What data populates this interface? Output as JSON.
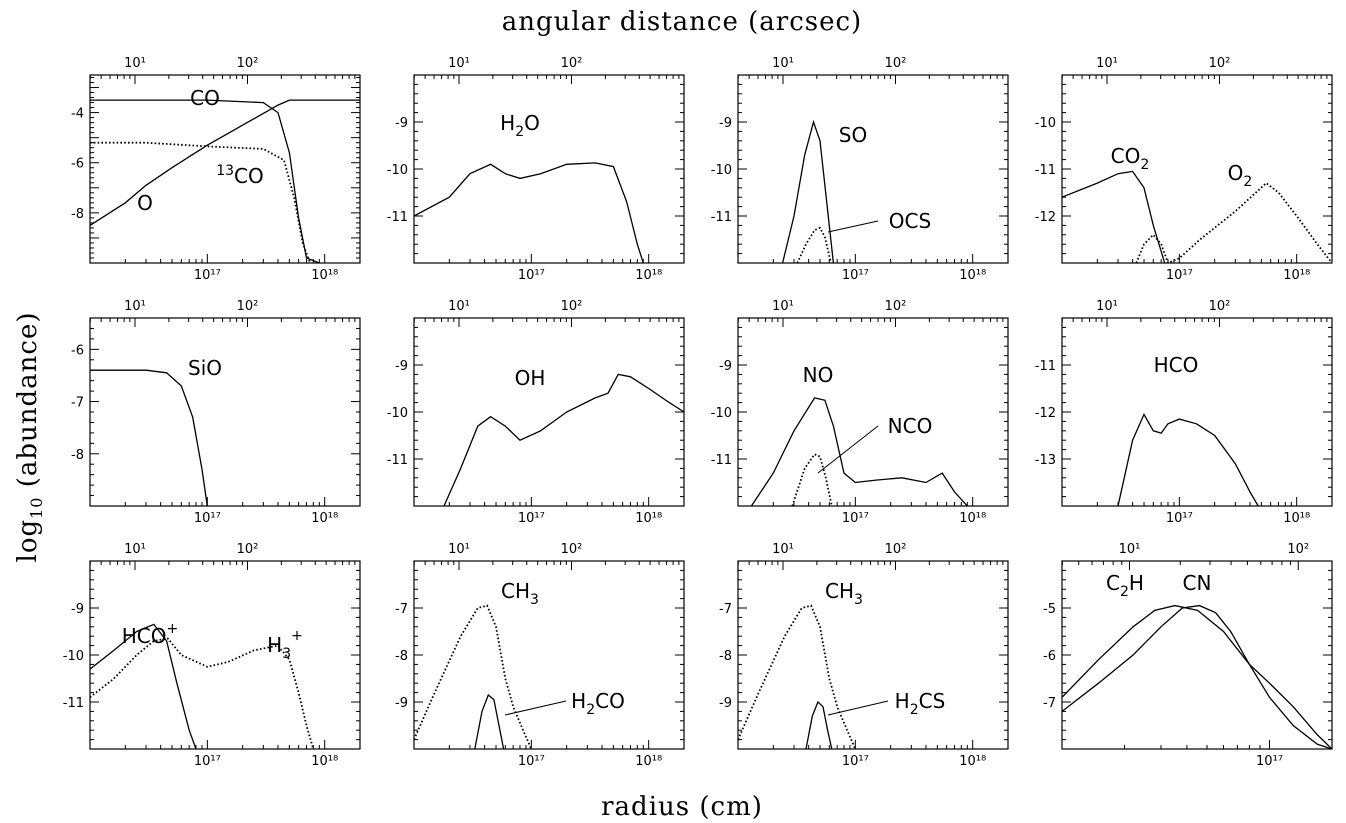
{
  "figure": {
    "top_label": "angular distance (arcsec)",
    "bottom_label": "radius (cm)",
    "left_label_main": "log",
    "left_label_sub": "10",
    "left_label_rest": " (abundance)"
  },
  "chart_data": [
    {
      "type": "line",
      "row": 0,
      "col": 0,
      "xlim": [
        1e+16,
        2e+18
      ],
      "ylim": [
        -10,
        -2.5
      ],
      "yticks": [
        "-4",
        "-6",
        "-8"
      ],
      "ytick_values": [
        -4,
        -6,
        -8
      ],
      "xticks": [
        "10¹⁷",
        "10¹⁸"
      ],
      "top_ticks": [
        "10¹",
        "10²"
      ],
      "series": [
        {
          "name": "CO",
          "style": "solid",
          "x": [
            1e+16,
            1e+17,
            3e+17,
            4e+17,
            5e+17,
            6e+17,
            7e+17,
            9e+17
          ],
          "y": [
            -3.5,
            -3.5,
            -3.6,
            -4.0,
            -5.6,
            -8.2,
            -9.8,
            -10
          ]
        },
        {
          "name": "O",
          "style": "solid",
          "x": [
            1e+16,
            2e+16,
            3e+16,
            5e+16,
            1e+17,
            2e+17,
            4e+17,
            5e+17,
            1e+18,
            2e+18
          ],
          "y": [
            -8.5,
            -7.6,
            -6.9,
            -6.2,
            -5.3,
            -4.5,
            -3.7,
            -3.5,
            -3.5,
            -3.5
          ]
        },
        {
          "name": "13CO",
          "style": "dotted",
          "x": [
            1e+16,
            3e+16,
            1e+17,
            3e+17,
            4.5e+17,
            5.5e+17,
            6.5e+17,
            7.5e+17
          ],
          "y": [
            -5.2,
            -5.2,
            -5.35,
            -5.45,
            -5.9,
            -7.4,
            -9.2,
            -10
          ]
        }
      ],
      "labels": [
        {
          "text": "CO",
          "sup": ""
        },
        {
          "text": "O",
          "sup": ""
        },
        {
          "text": "CO",
          "sup": "13"
        }
      ]
    },
    {
      "type": "line",
      "row": 0,
      "col": 1,
      "xlim": [
        1e+16,
        2e+18
      ],
      "ylim": [
        -12,
        -8
      ],
      "yticks": [
        "-9",
        "-10",
        "-11"
      ],
      "ytick_values": [
        -9,
        -10,
        -11
      ],
      "xticks": [
        "10¹⁷",
        "10¹⁸"
      ],
      "top_ticks": [
        "10¹",
        "10²"
      ],
      "series": [
        {
          "name": "H2O",
          "style": "solid",
          "x": [
            1e+16,
            2e+16,
            3e+16,
            4.5e+16,
            6e+16,
            8e+16,
            1.2e+17,
            2e+17,
            3.5e+17,
            5e+17,
            6.5e+17,
            8e+17,
            9e+17
          ],
          "y": [
            -11,
            -10.6,
            -10.1,
            -9.9,
            -10.1,
            -10.2,
            -10.1,
            -9.9,
            -9.87,
            -9.95,
            -10.7,
            -11.6,
            -12
          ]
        }
      ],
      "labels": [
        {
          "text": "H",
          "sub": "2",
          "tail": "O"
        }
      ]
    },
    {
      "type": "line",
      "row": 0,
      "col": 2,
      "xlim": [
        1e+16,
        2e+18
      ],
      "ylim": [
        -12,
        -8
      ],
      "yticks": [
        "-9",
        "-10",
        "-11"
      ],
      "ytick_values": [
        -9,
        -10,
        -11
      ],
      "xticks": [
        "10¹⁷",
        "10¹⁸"
      ],
      "top_ticks": [
        "10¹",
        "10²"
      ],
      "series": [
        {
          "name": "SO",
          "style": "solid",
          "x": [
            2.4e+16,
            3e+16,
            3.7e+16,
            4.4e+16,
            5e+16,
            5.7e+16,
            6.5e+16
          ],
          "y": [
            -12,
            -11,
            -9.7,
            -9.0,
            -9.4,
            -10.7,
            -12
          ]
        },
        {
          "name": "OCS",
          "style": "dotted",
          "x": [
            3.2e+16,
            3.8e+16,
            4.5e+16,
            5e+16,
            5.5e+16,
            6.2e+16
          ],
          "y": [
            -12,
            -11.6,
            -11.3,
            -11.25,
            -11.45,
            -12
          ]
        }
      ],
      "labels": [
        {
          "text": "SO"
        },
        {
          "text": "OCS"
        }
      ]
    },
    {
      "type": "line",
      "row": 0,
      "col": 3,
      "xlim": [
        1e+16,
        2e+18
      ],
      "ylim": [
        -13,
        -9
      ],
      "yticks": [
        "-10",
        "-11",
        "-12"
      ],
      "ytick_values": [
        -10,
        -11,
        -12
      ],
      "xticks": [
        "10¹⁷",
        "10¹⁸"
      ],
      "top_ticks": [
        "10¹",
        "10²"
      ],
      "series": [
        {
          "name": "CO2",
          "style": "solid",
          "x": [
            1e+16,
            2e+16,
            3e+16,
            4e+16,
            5e+16,
            6e+16,
            7.5e+16
          ],
          "y": [
            -11.6,
            -11.3,
            -11.1,
            -11.05,
            -11.4,
            -12.2,
            -13
          ]
        },
        {
          "name": "O2",
          "style": "dotted",
          "x": [
            4.3e+16,
            5e+16,
            6e+16,
            7e+16,
            8e+16,
            1e+17,
            1.5e+17,
            3e+17,
            4.5e+17,
            5.5e+17,
            7e+17,
            1e+18,
            1.5e+18,
            2e+18
          ],
          "y": [
            -13,
            -12.6,
            -12.4,
            -12.6,
            -13,
            -12.9,
            -12.5,
            -11.9,
            -11.5,
            -11.3,
            -11.5,
            -12,
            -12.6,
            -13
          ]
        }
      ],
      "labels": [
        {
          "text": "CO",
          "sub": "2"
        },
        {
          "text": "O",
          "sub": "2"
        }
      ]
    },
    {
      "type": "line",
      "row": 1,
      "col": 0,
      "xlim": [
        1e+16,
        2e+18
      ],
      "ylim": [
        -9,
        -5.4
      ],
      "yticks": [
        "-6",
        "-7",
        "-8"
      ],
      "ytick_values": [
        -6,
        -7,
        -8
      ],
      "xticks": [
        "10¹⁷",
        "10¹⁸"
      ],
      "top_ticks": [
        "10¹",
        "10²"
      ],
      "series": [
        {
          "name": "SiO",
          "style": "solid",
          "x": [
            1e+16,
            3e+16,
            4.5e+16,
            6e+16,
            7.5e+16,
            9e+16,
            1e+17
          ],
          "y": [
            -6.4,
            -6.4,
            -6.45,
            -6.7,
            -7.3,
            -8.3,
            -9
          ]
        }
      ],
      "labels": [
        {
          "text": "SiO"
        }
      ]
    },
    {
      "type": "line",
      "row": 1,
      "col": 1,
      "xlim": [
        1e+16,
        2e+18
      ],
      "ylim": [
        -12,
        -8
      ],
      "yticks": [
        "-9",
        "-10",
        "-11"
      ],
      "ytick_values": [
        -9,
        -10,
        -11
      ],
      "xticks": [
        "10¹⁷",
        "10¹⁸"
      ],
      "top_ticks": [
        "10¹",
        "10²"
      ],
      "series": [
        {
          "name": "OH",
          "style": "solid",
          "x": [
            1.8e+16,
            2.5e+16,
            3.5e+16,
            4.5e+16,
            6e+16,
            8e+16,
            1.2e+17,
            2e+17,
            3.5e+17,
            4.5e+17,
            5.5e+17,
            7e+17,
            1e+18,
            1.5e+18,
            2e+18
          ],
          "y": [
            -12,
            -11.2,
            -10.3,
            -10.1,
            -10.3,
            -10.6,
            -10.4,
            -10.0,
            -9.7,
            -9.6,
            -9.2,
            -9.25,
            -9.5,
            -9.8,
            -10
          ]
        }
      ],
      "labels": [
        {
          "text": "OH"
        }
      ]
    },
    {
      "type": "line",
      "row": 1,
      "col": 2,
      "xlim": [
        1e+16,
        2e+18
      ],
      "ylim": [
        -12,
        -8
      ],
      "yticks": [
        "-9",
        "-10",
        "-11"
      ],
      "ytick_values": [
        -9,
        -10,
        -11
      ],
      "xticks": [
        "10¹⁷",
        "10¹⁸"
      ],
      "top_ticks": [
        "10¹",
        "10²"
      ],
      "series": [
        {
          "name": "NO",
          "style": "solid",
          "x": [
            1.3e+16,
            2e+16,
            3e+16,
            4.5e+16,
            5.5e+16,
            6.5e+16,
            8e+16,
            1e+17,
            1.5e+17,
            2.5e+17,
            4e+17,
            5.5e+17,
            7e+17,
            9e+17
          ],
          "y": [
            -12,
            -11.3,
            -10.4,
            -9.7,
            -9.75,
            -10.3,
            -11.3,
            -11.5,
            -11.45,
            -11.4,
            -11.5,
            -11.3,
            -11.7,
            -12
          ]
        },
        {
          "name": "NCO",
          "style": "dotted",
          "x": [
            2.9e+16,
            3.7e+16,
            4.5e+16,
            5e+16,
            5.6e+16,
            6.3e+16
          ],
          "y": [
            -12,
            -11.2,
            -10.9,
            -10.95,
            -11.4,
            -12
          ]
        }
      ],
      "labels": [
        {
          "text": "NO"
        },
        {
          "text": "NCO"
        }
      ]
    },
    {
      "type": "line",
      "row": 1,
      "col": 3,
      "xlim": [
        1e+16,
        2e+18
      ],
      "ylim": [
        -14,
        -10
      ],
      "yticks": [
        "-11",
        "-12",
        "-13"
      ],
      "ytick_values": [
        -11,
        -12,
        -13
      ],
      "xticks": [
        "10¹⁷",
        "10¹⁸"
      ],
      "top_ticks": [
        "10¹",
        "10²"
      ],
      "series": [
        {
          "name": "HCO",
          "style": "solid",
          "x": [
            3e+16,
            4e+16,
            5e+16,
            6e+16,
            7e+16,
            8e+16,
            1e+17,
            1.4e+17,
            2e+17,
            3e+17,
            4e+17,
            4.7e+17
          ],
          "y": [
            -14,
            -12.6,
            -12.05,
            -12.4,
            -12.45,
            -12.25,
            -12.15,
            -12.25,
            -12.5,
            -13.1,
            -13.7,
            -14
          ]
        }
      ],
      "labels": [
        {
          "text": "HCO"
        }
      ]
    },
    {
      "type": "line",
      "row": 2,
      "col": 0,
      "xlim": [
        1e+16,
        2e+18
      ],
      "ylim": [
        -12,
        -8
      ],
      "yticks": [
        "-9",
        "-10",
        "-11"
      ],
      "ytick_values": [
        -9,
        -10,
        -11
      ],
      "xticks": [
        "10¹⁷",
        "10¹⁸"
      ],
      "top_ticks": [
        "10¹",
        "10²"
      ],
      "series": [
        {
          "name": "HCO+",
          "style": "solid",
          "x": [
            1e+16,
            1.6e+16,
            2.5e+16,
            3.5e+16,
            4.5e+16,
            5.5e+16,
            7e+16,
            8e+16
          ],
          "y": [
            -10.3,
            -9.9,
            -9.5,
            -9.35,
            -9.7,
            -10.6,
            -11.6,
            -12
          ]
        },
        {
          "name": "H3+",
          "style": "dotted",
          "x": [
            1e+16,
            1.6e+16,
            2.5e+16,
            3.5e+16,
            4.6e+16,
            6e+16,
            1e+17,
            1.5e+17,
            2.5e+17,
            4e+17,
            5e+17,
            6e+17,
            7e+17,
            8e+17
          ],
          "y": [
            -10.9,
            -10.5,
            -10,
            -9.7,
            -9.65,
            -10,
            -10.25,
            -10.15,
            -9.9,
            -9.8,
            -10.1,
            -10.8,
            -11.5,
            -12
          ]
        }
      ],
      "labels": [
        {
          "text": "HCO",
          "sup": "+"
        },
        {
          "text": "H",
          "sub": "3",
          "sup": "+"
        }
      ]
    },
    {
      "type": "line",
      "row": 2,
      "col": 1,
      "xlim": [
        1e+16,
        2e+18
      ],
      "ylim": [
        -10,
        -6
      ],
      "yticks": [
        "-7",
        "-8",
        "-9"
      ],
      "ytick_values": [
        -7,
        -8,
        -9
      ],
      "xticks": [
        "10¹⁷",
        "10¹⁸"
      ],
      "top_ticks": [
        "10¹",
        "10²"
      ],
      "series": [
        {
          "name": "CH3",
          "style": "dotted",
          "x": [
            1e+16,
            1.5e+16,
            2.5e+16,
            3.5e+16,
            4.2e+16,
            5e+16,
            6e+16,
            7e+16,
            8.5e+16,
            1e+17
          ],
          "y": [
            -9.8,
            -8.8,
            -7.6,
            -7.0,
            -6.95,
            -7.4,
            -8.5,
            -9.1,
            -9.6,
            -10
          ]
        },
        {
          "name": "H2CO",
          "style": "solid",
          "x": [
            3.3e+16,
            3.8e+16,
            4.3e+16,
            4.8e+16,
            5.3e+16,
            5.8e+16
          ],
          "y": [
            -10,
            -9.2,
            -8.85,
            -8.95,
            -9.5,
            -10
          ]
        }
      ],
      "labels": [
        {
          "text": "CH",
          "sub": "3"
        },
        {
          "text": "H",
          "sub": "2",
          "tail": "CO"
        }
      ]
    },
    {
      "type": "line",
      "row": 2,
      "col": 2,
      "xlim": [
        1e+16,
        2e+18
      ],
      "ylim": [
        -10,
        -6
      ],
      "yticks": [
        "-7",
        "-8",
        "-9"
      ],
      "ytick_values": [
        -7,
        -8,
        -9
      ],
      "xticks": [
        "10¹⁷",
        "10¹⁸"
      ],
      "top_ticks": [
        "10¹",
        "10²"
      ],
      "series": [
        {
          "name": "CH3",
          "style": "dotted",
          "x": [
            1e+16,
            1.5e+16,
            2.5e+16,
            3.5e+16,
            4.2e+16,
            5e+16,
            6e+16,
            7e+16,
            8.5e+16,
            1e+17
          ],
          "y": [
            -9.8,
            -8.8,
            -7.6,
            -7.0,
            -6.95,
            -7.4,
            -8.5,
            -9.1,
            -9.6,
            -10
          ]
        },
        {
          "name": "H2CS",
          "style": "solid",
          "x": [
            3.8e+16,
            4.3e+16,
            4.8e+16,
            5.3e+16,
            5.8e+16,
            6.3e+16
          ],
          "y": [
            -10,
            -9.3,
            -9.0,
            -9.1,
            -9.6,
            -10
          ]
        }
      ],
      "labels": [
        {
          "text": "CH",
          "sub": "3"
        },
        {
          "text": "H",
          "sub": "2",
          "tail": "CS"
        }
      ]
    },
    {
      "type": "line",
      "row": 2,
      "col": 3,
      "xlim": [
        1e+16,
        2e+17
      ],
      "ylim": [
        -8,
        -4
      ],
      "yticks": [
        "-5",
        "-6",
        "-7"
      ],
      "ytick_values": [
        -5,
        -6,
        -7
      ],
      "xticks": [
        "10¹⁷"
      ],
      "top_ticks": [
        "10¹",
        "10²"
      ],
      "series": [
        {
          "name": "C2H",
          "style": "solid",
          "x": [
            1e+16,
            1.5e+16,
            2.2e+16,
            2.8e+16,
            3.5e+16,
            4.5e+16,
            6e+16,
            8e+16,
            1e+17,
            1.3e+17,
            1.7e+17,
            2e+17
          ],
          "y": [
            -6.9,
            -6.1,
            -5.4,
            -5.05,
            -4.95,
            -5.05,
            -5.5,
            -6.2,
            -6.9,
            -7.5,
            -7.9,
            -8
          ]
        },
        {
          "name": "CN",
          "style": "solid",
          "x": [
            1e+16,
            1.5e+16,
            2.2e+16,
            3e+16,
            3.8e+16,
            4.6e+16,
            5.5e+16,
            6.5e+16,
            8e+16,
            1e+17,
            1.3e+17,
            1.7e+17,
            2e+17
          ],
          "y": [
            -7.2,
            -6.6,
            -6.0,
            -5.4,
            -5.0,
            -4.95,
            -5.1,
            -5.5,
            -6.2,
            -6.6,
            -7.1,
            -7.7,
            -8
          ]
        }
      ],
      "labels": [
        {
          "text": "C",
          "sub": "2",
          "tail": "H"
        },
        {
          "text": "CN"
        }
      ]
    }
  ]
}
